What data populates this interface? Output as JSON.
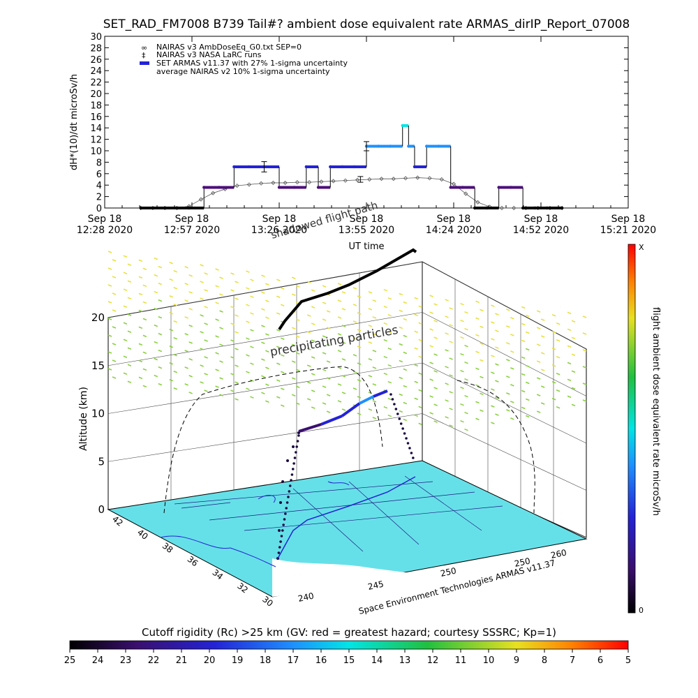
{
  "title": "SET_RAD_FM7008  B739 Tail#? ambient dose equivalent rate ARMAS_dirIP_Report_07008",
  "colors": {
    "background": "#ffffff",
    "nairas_v3": "#555555",
    "armas_dark": "#4b0f7a",
    "armas_mid": "#2323d6",
    "armas_light": "#1e90ff",
    "armas_peak": "#00e5e5",
    "map_fill": "#66e0e8",
    "land_fill": "#ffffff",
    "particles_high": "#e8e040",
    "particles_low": "#8ad040",
    "flight_black": "#000000"
  },
  "chart_data": [
    {
      "type": "line",
      "title": "SET_RAD_FM7008  B739 Tail#? ambient dose equivalent rate ARMAS_dirIP_Report_07008",
      "ylabel": "dH*(10)/dt microSv/h",
      "xlabel": "UT time",
      "ylim": [
        0,
        30
      ],
      "yticks": [
        "0",
        "2",
        "4",
        "6",
        "8",
        "10",
        "12",
        "14",
        "16",
        "18",
        "20",
        "22",
        "24",
        "26",
        "28",
        "30"
      ],
      "xticks": [
        {
          "line1": "Sep 18",
          "line2": "12:28 2020",
          "minutes": 0
        },
        {
          "line1": "Sep 18",
          "line2": "12:57 2020",
          "minutes": 29
        },
        {
          "line1": "Sep 18",
          "line2": "13:26 2020",
          "minutes": 58
        },
        {
          "line1": "Sep 18",
          "line2": "13:55 2020",
          "minutes": 87
        },
        {
          "line1": "Sep 18",
          "line2": "14:24 2020",
          "minutes": 116
        },
        {
          "line1": "Sep 18",
          "line2": "14:52 2020",
          "minutes": 145
        },
        {
          "line1": "Sep 18",
          "line2": "15:21 2020",
          "minutes": 174
        }
      ],
      "legend": [
        {
          "symbol": "∞",
          "text": "NAIRAS v3 AmbDoseEq_G0.txt SEP=0"
        },
        {
          "symbol": "‡",
          "text": "NAIRAS v3 NASA LaRC runs"
        },
        {
          "symbol": "▬",
          "text": "SET ARMAS v11.37 with 27% 1-sigma uncertainty"
        },
        {
          "symbol": "",
          "text": "average NAIRAS v2 10% 1-sigma uncertainty"
        }
      ],
      "legend_position": "top-left",
      "series": [
        {
          "name": "NAIRAS v3 AmbDoseEq_G0.txt SEP=0",
          "x": [
            12,
            16,
            20,
            24,
            28,
            32,
            36,
            40,
            44,
            48,
            52,
            56,
            60,
            64,
            68,
            72,
            76,
            80,
            84,
            88,
            92,
            96,
            100,
            104,
            108,
            112,
            116,
            120,
            124,
            128,
            132,
            136,
            140,
            144,
            148,
            152
          ],
          "y": [
            0,
            0,
            0,
            0,
            0.3,
            1.5,
            2.6,
            3.3,
            3.9,
            4.1,
            4.3,
            4.4,
            4.4,
            4.5,
            4.5,
            4.6,
            4.7,
            4.8,
            4.9,
            5.0,
            5.1,
            5.1,
            5.2,
            5.3,
            5.2,
            5.0,
            4.2,
            2.5,
            1.0,
            0.2,
            0,
            0,
            0,
            0,
            0,
            0
          ]
        },
        {
          "name": "SET ARMAS v11.37 with 27% 1-sigma uncertainty",
          "x": [
            12,
            20,
            28,
            33,
            38,
            43,
            48,
            53,
            58,
            63,
            67,
            71,
            75,
            79,
            83,
            87,
            91,
            95,
            99,
            101,
            103,
            107,
            111,
            115,
            119,
            123,
            127,
            131,
            135,
            139,
            143,
            147,
            152
          ],
          "y": [
            0,
            0,
            0,
            3.6,
            3.6,
            7.2,
            7.2,
            7.2,
            3.6,
            3.6,
            7.2,
            3.6,
            7.2,
            7.2,
            7.2,
            10.8,
            10.8,
            10.8,
            14.4,
            10.8,
            7.2,
            10.8,
            10.8,
            3.6,
            3.6,
            0,
            0,
            3.6,
            3.6,
            0,
            0,
            0,
            0
          ]
        }
      ],
      "error_bars": [
        {
          "x": 53,
          "y": 7.2,
          "err": 0.9
        },
        {
          "x": 85,
          "y": 5.0,
          "err": 0.5
        },
        {
          "x": 87,
          "y": 10.8,
          "err": 0.8
        }
      ]
    },
    {
      "type": "scatter",
      "ylabel": "Altitude (km)",
      "zticks": [
        "0",
        "5",
        "10",
        "15",
        "20"
      ],
      "lat_ticks": [
        "42",
        "40",
        "38",
        "36",
        "34",
        "32",
        "30"
      ],
      "lon_ticks": [
        "240",
        "245",
        "250"
      ],
      "lon_ticks_right": [
        "250",
        "260"
      ],
      "annotations": [
        "shadowed flight path",
        "precipitating particles",
        "Space Environment Technologies ARMAS v11.37"
      ],
      "colorbar_right": {
        "label": "flight ambient dose equivalent rate microSv/h",
        "top": "X",
        "bottom": "0"
      },
      "colorbar_bottom": {
        "label": "Cutoff rigidity (Rc) >25 km (GV: red = greatest hazard; courtesy SSSRC; Kp=1)",
        "ticks": [
          "25",
          "24",
          "23",
          "22",
          "21",
          "20",
          "19",
          "18",
          "17",
          "16",
          "15",
          "14",
          "13",
          "12",
          "11",
          "10",
          "9",
          "8",
          "7",
          "6",
          "5"
        ]
      }
    }
  ]
}
